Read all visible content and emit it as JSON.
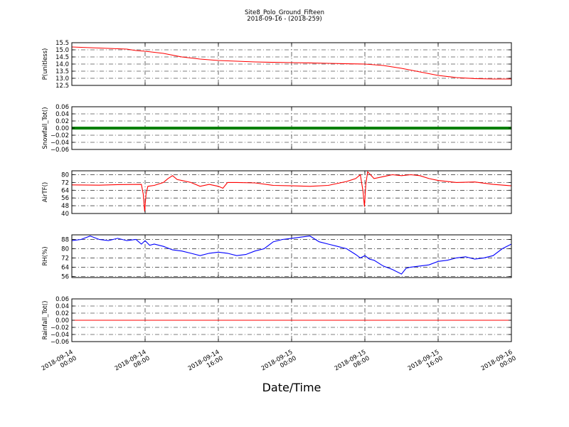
{
  "title": "Site8_Polo_Ground_Fifteen",
  "subtitle": "2018-09-16 - (2018-259)",
  "xlabel": "Date/Time",
  "x_ticks": [
    {
      "line1": "2018-09-14",
      "line2": "00:00"
    },
    {
      "line1": "2018-09-14",
      "line2": "08:00"
    },
    {
      "line1": "2018-09-14",
      "line2": "16:00"
    },
    {
      "line1": "2018-09-15",
      "line2": "00:00"
    },
    {
      "line1": "2018-09-15",
      "line2": "08:00"
    },
    {
      "line1": "2018-09-15",
      "line2": "16:00"
    },
    {
      "line1": "2018-09-16",
      "line2": "00:00"
    }
  ],
  "chart_data": [
    {
      "type": "line",
      "ylabel": "P(unitless)",
      "ylim": [
        12.5,
        15.5
      ],
      "yticks": [
        "15.5",
        "15.0",
        "14.5",
        "14.0",
        "13.5",
        "13.0",
        "12.5"
      ],
      "ytick_values": [
        15.5,
        15.0,
        14.5,
        14.0,
        13.5,
        13.0,
        12.5
      ],
      "grid": true,
      "color": "#ff0000",
      "series": [
        {
          "x_hours": [
            0,
            2,
            4,
            6,
            6.5,
            7,
            8,
            10,
            12,
            14,
            16,
            18,
            20,
            22,
            24,
            26,
            28,
            30,
            32,
            34,
            36,
            38,
            40,
            42,
            44,
            46,
            48
          ],
          "values": [
            15.2,
            15.15,
            15.1,
            15.05,
            15.0,
            14.95,
            14.9,
            14.75,
            14.5,
            14.35,
            14.25,
            14.2,
            14.15,
            14.12,
            14.1,
            14.08,
            14.05,
            14.02,
            14.0,
            13.9,
            13.7,
            13.45,
            13.2,
            13.05,
            12.98,
            12.95,
            12.95
          ]
        }
      ]
    },
    {
      "type": "scatter",
      "ylabel": "Snowfall_Tot()",
      "ylim": [
        -0.06,
        0.06
      ],
      "yticks": [
        "0.06",
        "0.04",
        "0.02",
        "0.00",
        "−0.02",
        "−0.04",
        "−0.06"
      ],
      "ytick_values": [
        0.06,
        0.04,
        0.02,
        0.0,
        -0.02,
        -0.04,
        -0.06
      ],
      "grid": true,
      "color": "#008000",
      "series": [
        {
          "x_hours": [
            0,
            48
          ],
          "values": [
            0.0,
            0.0
          ],
          "note": "constant zero, one point per time step"
        }
      ]
    },
    {
      "type": "line",
      "ylabel": "AirTF()",
      "ylim": [
        40,
        84
      ],
      "yticks": [
        "80",
        "72",
        "64",
        "56",
        "48",
        "40"
      ],
      "ytick_values": [
        80,
        72,
        64,
        56,
        48,
        40
      ],
      "grid": true,
      "color": "#ff0000",
      "series": [
        {
          "x_hours": [
            0,
            3,
            5,
            7.6,
            7.8,
            7.95,
            8.1,
            8.3,
            9,
            10,
            10.5,
            11,
            11.5,
            12,
            13,
            14,
            15,
            16,
            16.5,
            17,
            18,
            20,
            22,
            24,
            26,
            28,
            30,
            31,
            31.5,
            31.8,
            31.95,
            32.1,
            32.3,
            33,
            34,
            34.5,
            35,
            36,
            37,
            38,
            39,
            40,
            42,
            44,
            46,
            48
          ],
          "values": [
            69.5,
            69.2,
            69.8,
            70,
            60,
            42,
            60,
            68,
            69,
            72,
            76,
            79,
            75,
            74,
            72,
            68,
            70,
            68,
            66,
            72,
            72,
            71.5,
            69,
            68.5,
            68,
            69,
            73,
            76,
            80,
            63,
            47,
            70,
            83,
            76,
            78,
            79,
            80,
            79,
            80,
            79,
            76,
            74,
            72,
            72.5,
            70,
            68.5
          ]
        }
      ]
    },
    {
      "type": "line",
      "ylabel": "RH(%)",
      "ylim": [
        55,
        92
      ],
      "yticks": [
        "88",
        "80",
        "72",
        "64",
        "56"
      ],
      "ytick_values": [
        88,
        80,
        72,
        64,
        56
      ],
      "grid": true,
      "color": "#0000ff",
      "series": [
        {
          "x_hours": [
            0,
            1,
            2,
            3,
            4,
            5,
            6,
            7,
            7.6,
            8,
            8.5,
            9,
            10,
            11,
            12,
            13,
            14,
            15,
            16,
            17,
            18,
            19,
            20,
            21,
            22,
            23,
            24,
            25,
            26,
            27,
            28,
            29,
            30,
            31,
            31.5,
            32,
            32.5,
            33,
            34,
            35,
            36,
            36.5,
            37,
            38,
            39,
            40,
            41,
            42,
            43,
            44,
            45,
            46,
            47,
            48
          ],
          "values": [
            87,
            88,
            91,
            88,
            87,
            89,
            87,
            88,
            84,
            87,
            83,
            84,
            82,
            79,
            78,
            76,
            74,
            76,
            77,
            76,
            74,
            75,
            78,
            80,
            86,
            88,
            89,
            90,
            91,
            86,
            84,
            82,
            80,
            75,
            72,
            74,
            71,
            70,
            65,
            62,
            58,
            63,
            64,
            65,
            66,
            69,
            70,
            72,
            73,
            71,
            72,
            74,
            80,
            84
          ]
        }
      ]
    },
    {
      "type": "line",
      "ylabel": "Rainfall_Tot()",
      "ylim": [
        -0.06,
        0.06
      ],
      "yticks": [
        "0.06",
        "0.04",
        "0.02",
        "0.00",
        "−0.02",
        "−0.04",
        "−0.06"
      ],
      "ytick_values": [
        0.06,
        0.04,
        0.02,
        0.0,
        -0.02,
        -0.04,
        -0.06
      ],
      "grid": true,
      "color": "#ff0000",
      "series": [
        {
          "x_hours": [
            0,
            48
          ],
          "values": [
            0.0,
            0.0
          ]
        }
      ]
    }
  ]
}
